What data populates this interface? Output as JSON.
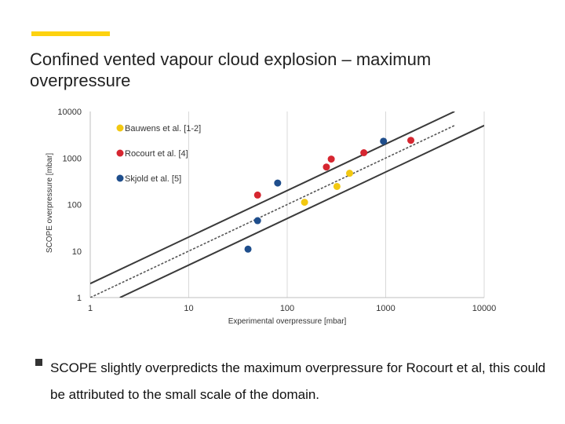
{
  "slide": {
    "title": "Confined vented vapour cloud explosion – maximum overpressure",
    "accent_color": "#FDD20F",
    "bullet": "SCOPE slightly overpredicts the maximum overpressure for Rocourt et al, this could be attributed to the small scale of the domain."
  },
  "chart_data": {
    "type": "scatter",
    "title": "",
    "xlabel": "Experimental overpressure [mbar]",
    "ylabel": "SCOPE overpressure [mbar]",
    "x_scale": "log",
    "y_scale": "log",
    "xlim": [
      1,
      10000
    ],
    "ylim": [
      1,
      10000
    ],
    "x_ticks": [
      "1",
      "10",
      "100",
      "1000",
      "10000"
    ],
    "y_ticks": [
      "1",
      "10",
      "100",
      "1000",
      "10000"
    ],
    "grid": "vertical",
    "legend_position": "top-left",
    "series": [
      {
        "name": "Bauwens et al. [1-2]",
        "color": "#F2C811",
        "points": [
          [
            150,
            112
          ],
          [
            320,
            245
          ],
          [
            430,
            470
          ]
        ]
      },
      {
        "name": "Rocourt et al. [4]",
        "color": "#D62630",
        "points": [
          [
            50,
            160
          ],
          [
            250,
            640
          ],
          [
            280,
            950
          ],
          [
            600,
            1300
          ],
          [
            1800,
            2400
          ]
        ]
      },
      {
        "name": "Skjold et al. [5]",
        "color": "#1F4E8C",
        "points": [
          [
            40,
            11
          ],
          [
            50,
            45
          ],
          [
            80,
            290
          ],
          [
            950,
            2300
          ]
        ]
      }
    ],
    "reference_lines": [
      {
        "style": "dashed",
        "x": [
          1,
          5000
        ],
        "y": [
          1,
          5000
        ]
      },
      {
        "style": "solid",
        "x": [
          1,
          5000
        ],
        "y": [
          2,
          10000
        ]
      },
      {
        "style": "solid",
        "x": [
          2,
          10000
        ],
        "y": [
          1,
          5000
        ]
      }
    ]
  }
}
